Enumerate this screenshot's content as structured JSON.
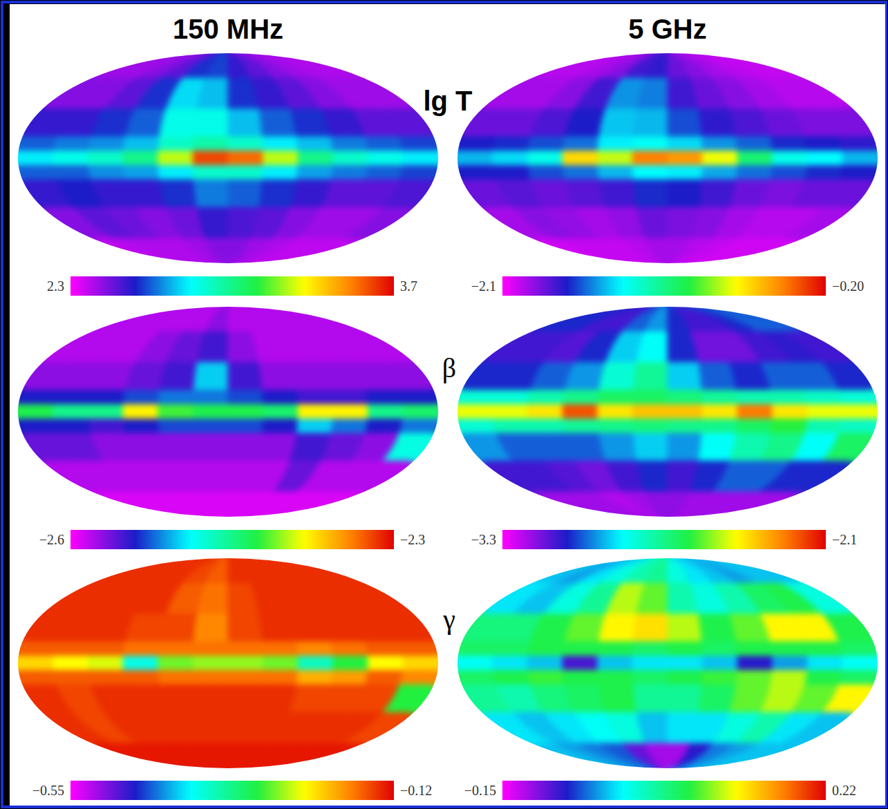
{
  "column_titles": [
    "150 MHz",
    "5 GHz"
  ],
  "row_labels": [
    "lg T",
    "β",
    "γ"
  ],
  "chart_data": [
    {
      "type": "heatmap",
      "x": [
        180,
        150,
        120,
        90,
        60,
        30,
        0,
        -30,
        -60,
        -90,
        -120,
        -150,
        -180
      ],
      "y": [
        90,
        60,
        35,
        15,
        5,
        -5,
        -15,
        -35,
        -60,
        -90
      ],
      "values": [
        [
          2.42,
          2.42,
          2.45,
          2.5,
          2.6,
          2.62,
          2.55,
          2.5,
          2.45,
          2.42,
          2.4,
          2.4
        ],
        [
          2.45,
          2.45,
          2.5,
          2.6,
          2.78,
          2.75,
          2.6,
          2.55,
          2.5,
          2.45,
          2.42,
          2.42
        ],
        [
          2.55,
          2.55,
          2.6,
          2.65,
          2.85,
          2.85,
          2.75,
          2.65,
          2.6,
          2.55,
          2.5,
          2.5
        ],
        [
          2.65,
          2.68,
          2.7,
          2.75,
          2.9,
          2.95,
          2.9,
          2.8,
          2.75,
          2.68,
          2.65,
          2.62
        ],
        [
          2.8,
          2.85,
          2.9,
          3.0,
          3.25,
          3.6,
          3.55,
          3.25,
          3.0,
          2.9,
          2.85,
          2.8
        ],
        [
          2.65,
          2.65,
          2.7,
          2.72,
          2.8,
          2.9,
          2.9,
          2.8,
          2.72,
          2.68,
          2.65,
          2.62
        ],
        [
          2.55,
          2.58,
          2.55,
          2.55,
          2.6,
          2.68,
          2.65,
          2.6,
          2.55,
          2.5,
          2.5,
          2.52
        ],
        [
          2.45,
          2.5,
          2.48,
          2.45,
          2.48,
          2.55,
          2.52,
          2.5,
          2.45,
          2.42,
          2.42,
          2.45
        ],
        [
          2.38,
          2.4,
          2.4,
          2.4,
          2.42,
          2.45,
          2.45,
          2.42,
          2.4,
          2.38,
          2.38,
          2.38
        ]
      ],
      "colorbar": {
        "range": [
          2.3,
          3.7
        ],
        "ticks": [
          2.3,
          3.7
        ]
      }
    },
    {
      "type": "heatmap",
      "x": [
        180,
        150,
        120,
        90,
        60,
        30,
        0,
        -30,
        -60,
        -90,
        -120,
        -150,
        -180
      ],
      "y": [
        90,
        60,
        35,
        15,
        5,
        -5,
        -15,
        -35,
        -60,
        -90
      ],
      "values": [
        [
          -1.98,
          -1.98,
          -1.95,
          -1.9,
          -1.78,
          -1.75,
          -1.85,
          -1.9,
          -1.95,
          -1.98,
          -2.0,
          -2.0
        ],
        [
          -1.95,
          -1.95,
          -1.9,
          -1.78,
          -1.55,
          -1.58,
          -1.78,
          -1.85,
          -1.9,
          -1.95,
          -1.98,
          -1.98
        ],
        [
          -1.85,
          -1.85,
          -1.8,
          -1.72,
          -1.48,
          -1.5,
          -1.65,
          -1.75,
          -1.8,
          -1.85,
          -1.88,
          -1.88
        ],
        [
          -1.72,
          -1.7,
          -1.65,
          -1.6,
          -1.42,
          -1.38,
          -1.45,
          -1.55,
          -1.62,
          -1.7,
          -1.72,
          -1.75
        ],
        [
          -1.5,
          -1.45,
          -1.35,
          -0.65,
          -0.8,
          -0.45,
          -0.5,
          -0.75,
          -1.1,
          -1.35,
          -1.4,
          -1.5
        ],
        [
          -1.72,
          -1.72,
          -1.65,
          -1.6,
          -1.5,
          -1.4,
          -1.42,
          -1.52,
          -1.6,
          -1.65,
          -1.7,
          -1.72
        ],
        [
          -1.85,
          -1.82,
          -1.85,
          -1.82,
          -1.78,
          -1.7,
          -1.72,
          -1.78,
          -1.85,
          -1.88,
          -1.85,
          -1.85
        ],
        [
          -1.95,
          -1.9,
          -1.92,
          -1.95,
          -1.92,
          -1.85,
          -1.88,
          -1.9,
          -1.95,
          -1.98,
          -1.98,
          -1.95
        ],
        [
          -2.02,
          -2.0,
          -2.0,
          -2.0,
          -1.98,
          -1.95,
          -1.95,
          -1.98,
          -2.0,
          -2.02,
          -2.02,
          -2.02
        ]
      ],
      "colorbar": {
        "range": [
          -2.1,
          -0.2
        ],
        "ticks": [
          {
            "value": -2.1,
            "label": "−2.1"
          },
          {
            "value": -0.2,
            "label": "−0.20"
          }
        ]
      }
    },
    {
      "type": "heatmap",
      "x": [
        180,
        150,
        120,
        90,
        60,
        30,
        0,
        -30,
        -60,
        -90,
        -120,
        -150,
        -180
      ],
      "y": [
        90,
        60,
        35,
        15,
        5,
        -5,
        -15,
        -35,
        -60,
        -90
      ],
      "values": [
        [
          -2.58,
          -2.58,
          -2.58,
          -2.58,
          -2.58,
          -2.57,
          -2.58,
          -2.58,
          -2.58,
          -2.58,
          -2.58,
          -2.58
        ],
        [
          -2.58,
          -2.58,
          -2.58,
          -2.57,
          -2.56,
          -2.55,
          -2.57,
          -2.58,
          -2.58,
          -2.58,
          -2.58,
          -2.58
        ],
        [
          -2.57,
          -2.57,
          -2.57,
          -2.56,
          -2.55,
          -2.5,
          -2.55,
          -2.57,
          -2.57,
          -2.57,
          -2.57,
          -2.57
        ],
        [
          -2.54,
          -2.54,
          -2.54,
          -2.53,
          -2.52,
          -2.52,
          -2.53,
          -2.54,
          -2.55,
          -2.55,
          -2.54,
          -2.54
        ],
        [
          -2.43,
          -2.45,
          -2.45,
          -2.38,
          -2.42,
          -2.43,
          -2.43,
          -2.44,
          -2.38,
          -2.38,
          -2.45,
          -2.44
        ],
        [
          -2.54,
          -2.54,
          -2.55,
          -2.54,
          -2.53,
          -2.53,
          -2.53,
          -2.54,
          -2.5,
          -2.52,
          -2.54,
          -2.52
        ],
        [
          -2.56,
          -2.56,
          -2.57,
          -2.57,
          -2.57,
          -2.57,
          -2.57,
          -2.57,
          -2.55,
          -2.56,
          -2.57,
          -2.48
        ],
        [
          -2.58,
          -2.58,
          -2.58,
          -2.58,
          -2.58,
          -2.58,
          -2.58,
          -2.58,
          -2.56,
          -2.58,
          -2.58,
          -2.58
        ],
        [
          -2.59,
          -2.59,
          -2.59,
          -2.59,
          -2.59,
          -2.59,
          -2.59,
          -2.59,
          -2.59,
          -2.59,
          -2.59,
          -2.59
        ]
      ],
      "colorbar": {
        "range": [
          -2.6,
          -2.3
        ],
        "ticks": [
          {
            "value": -2.6,
            "label": "−2.6"
          },
          {
            "value": -2.3,
            "label": "−2.3"
          }
        ]
      }
    },
    {
      "type": "heatmap",
      "x": [
        180,
        150,
        120,
        90,
        60,
        30,
        0,
        -30,
        -60,
        -90,
        -120,
        -150,
        -180
      ],
      "y": [
        90,
        60,
        35,
        15,
        5,
        -5,
        -15,
        -35,
        -60,
        -90
      ],
      "values": [
        [
          -3.05,
          -3.05,
          -3.1,
          -3.1,
          -3.0,
          -2.95,
          -3.05,
          -3.1,
          -3.1,
          -3.05,
          -3.0,
          -3.0
        ],
        [
          -3.1,
          -3.1,
          -3.12,
          -3.05,
          -2.9,
          -2.85,
          -3.05,
          -3.15,
          -3.15,
          -3.1,
          -3.08,
          -3.1
        ],
        [
          -3.05,
          -3.05,
          -3.0,
          -2.95,
          -2.8,
          -2.72,
          -2.9,
          -3.0,
          -3.05,
          -3.0,
          -3.0,
          -3.05
        ],
        [
          -2.8,
          -2.8,
          -2.75,
          -2.7,
          -2.65,
          -2.65,
          -2.68,
          -2.72,
          -2.75,
          -2.75,
          -2.78,
          -2.8
        ],
        [
          -2.45,
          -2.45,
          -2.4,
          -2.2,
          -2.4,
          -2.35,
          -2.35,
          -2.4,
          -2.25,
          -2.4,
          -2.45,
          -2.45
        ],
        [
          -2.8,
          -2.75,
          -2.75,
          -2.72,
          -2.7,
          -2.68,
          -2.7,
          -2.7,
          -2.65,
          -2.6,
          -2.75,
          -2.78
        ],
        [
          -2.95,
          -3.0,
          -3.0,
          -3.0,
          -2.95,
          -2.9,
          -2.95,
          -2.85,
          -2.75,
          -2.7,
          -2.85,
          -2.65
        ],
        [
          -3.1,
          -3.1,
          -3.12,
          -3.15,
          -3.1,
          -3.05,
          -3.1,
          -3.05,
          -3.0,
          -3.0,
          -3.05,
          -3.05
        ],
        [
          -3.2,
          -3.2,
          -3.2,
          -3.22,
          -3.2,
          -3.18,
          -3.18,
          -3.2,
          -3.2,
          -3.2,
          -3.2,
          -3.2
        ]
      ],
      "colorbar": {
        "range": [
          -3.3,
          -2.1
        ],
        "ticks": [
          {
            "value": -3.3,
            "label": "−3.3"
          },
          {
            "value": -2.1,
            "label": "−2.1"
          }
        ]
      }
    },
    {
      "type": "heatmap",
      "x": [
        180,
        150,
        120,
        90,
        60,
        30,
        0,
        -30,
        -60,
        -90,
        -120,
        -150,
        -180
      ],
      "y": [
        90,
        60,
        35,
        15,
        5,
        -5,
        -15,
        -35,
        -60,
        -90
      ],
      "values": [
        [
          -0.14,
          -0.14,
          -0.14,
          -0.14,
          -0.15,
          -0.16,
          -0.14,
          -0.14,
          -0.14,
          -0.14,
          -0.14,
          -0.14
        ],
        [
          -0.14,
          -0.14,
          -0.14,
          -0.14,
          -0.16,
          -0.17,
          -0.15,
          -0.14,
          -0.14,
          -0.14,
          -0.14,
          -0.14
        ],
        [
          -0.14,
          -0.14,
          -0.14,
          -0.15,
          -0.15,
          -0.18,
          -0.15,
          -0.14,
          -0.14,
          -0.14,
          -0.14,
          -0.14
        ],
        [
          -0.16,
          -0.16,
          -0.16,
          -0.17,
          -0.17,
          -0.17,
          -0.17,
          -0.17,
          -0.18,
          -0.17,
          -0.16,
          -0.16
        ],
        [
          -0.22,
          -0.24,
          -0.25,
          -0.38,
          -0.28,
          -0.27,
          -0.27,
          -0.28,
          -0.36,
          -0.3,
          -0.24,
          -0.22
        ],
        [
          -0.16,
          -0.16,
          -0.16,
          -0.16,
          -0.17,
          -0.17,
          -0.17,
          -0.17,
          -0.2,
          -0.19,
          -0.16,
          -0.18
        ],
        [
          -0.14,
          -0.15,
          -0.14,
          -0.14,
          -0.14,
          -0.14,
          -0.14,
          -0.14,
          -0.15,
          -0.15,
          -0.15,
          -0.3
        ],
        [
          -0.14,
          -0.15,
          -0.14,
          -0.14,
          -0.14,
          -0.14,
          -0.14,
          -0.14,
          -0.14,
          -0.14,
          -0.14,
          -0.15
        ],
        [
          -0.13,
          -0.13,
          -0.13,
          -0.13,
          -0.13,
          -0.13,
          -0.13,
          -0.13,
          -0.13,
          -0.13,
          -0.13,
          -0.13
        ]
      ],
      "colorbar": {
        "range": [
          -0.55,
          -0.12
        ],
        "ticks": [
          {
            "value": -0.55,
            "label": "−0.55"
          },
          {
            "value": -0.12,
            "label": "−0.12"
          }
        ]
      }
    },
    {
      "type": "heatmap",
      "x": [
        180,
        150,
        120,
        90,
        60,
        30,
        0,
        -30,
        -60,
        -90,
        -120,
        -150,
        -180
      ],
      "y": [
        90,
        60,
        35,
        15,
        5,
        -5,
        -15,
        -35,
        -60,
        -90
      ],
      "values": [
        [
          -0.03,
          -0.04,
          -0.02,
          0.0,
          0.02,
          0.03,
          0.0,
          -0.02,
          -0.03,
          -0.04,
          -0.03,
          -0.03
        ],
        [
          -0.02,
          -0.03,
          0.0,
          0.03,
          0.1,
          0.08,
          0.02,
          0.0,
          0.02,
          0.05,
          0.06,
          0.0
        ],
        [
          0.04,
          0.04,
          0.06,
          0.08,
          0.12,
          0.13,
          0.1,
          0.06,
          0.08,
          0.12,
          0.12,
          0.06
        ],
        [
          0.05,
          0.05,
          0.06,
          0.06,
          0.06,
          0.05,
          0.06,
          0.05,
          0.06,
          0.06,
          0.06,
          0.05
        ],
        [
          -0.01,
          -0.02,
          -0.03,
          -0.09,
          -0.03,
          -0.02,
          -0.02,
          -0.03,
          -0.08,
          -0.04,
          -0.02,
          -0.01
        ],
        [
          0.05,
          0.06,
          0.07,
          0.06,
          0.06,
          0.05,
          0.06,
          0.07,
          0.08,
          0.1,
          0.06,
          0.05
        ],
        [
          0.03,
          0.02,
          0.04,
          0.05,
          0.06,
          0.03,
          0.03,
          0.05,
          0.08,
          0.1,
          0.08,
          0.12
        ],
        [
          -0.02,
          -0.03,
          -0.02,
          -0.01,
          0.0,
          -0.03,
          -0.02,
          -0.02,
          0.0,
          0.02,
          -0.02,
          -0.03
        ],
        [
          -0.03,
          -0.04,
          -0.05,
          -0.06,
          -0.1,
          -0.12,
          -0.12,
          -0.08,
          -0.05,
          -0.04,
          -0.03,
          -0.03
        ]
      ],
      "colorbar": {
        "range": [
          -0.15,
          0.22
        ],
        "ticks": [
          {
            "value": -0.15,
            "label": "−0.15"
          },
          0.22
        ]
      }
    }
  ]
}
